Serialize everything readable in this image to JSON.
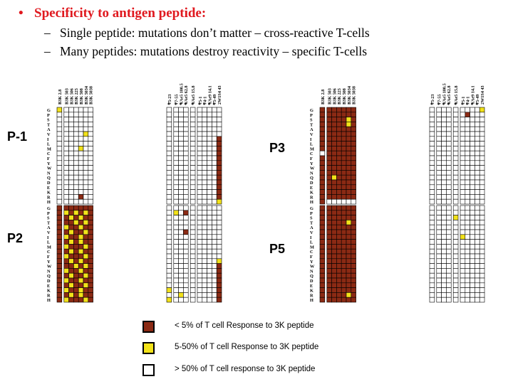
{
  "heading": {
    "bullet": "•",
    "title": "Specificity to antigen peptide:",
    "points": [
      {
        "dash": "–",
        "text": "Single peptide: mutations don’t matter – cross-reactive T-cells"
      },
      {
        "dash": "–",
        "text": "Many peptides: mutations destroy reactivity – specific T-cells"
      }
    ]
  },
  "panels": {
    "p1": "P-1",
    "p2": "P2",
    "p3": "P3",
    "p5": "P5"
  },
  "residues": [
    "G",
    "P",
    "S",
    "T",
    "A",
    "V",
    "I",
    "L",
    "M",
    "C",
    "F",
    "Y",
    "W",
    "N",
    "Q",
    "D",
    "E",
    "K",
    "R",
    "H"
  ],
  "left_columns": [
    "B3K 2.8",
    "B3K 503",
    "B3K 506",
    "B3K 225",
    "B3K 508",
    "B3K 5034",
    "B3K 5038"
  ],
  "right_columns": [
    "75-23",
    "77-55",
    "YAe5 100.5",
    "YAe5 62.8",
    "YAe5 15.8",
    "75-1",
    "74-1",
    "YAe9 14.1",
    "75-49",
    "2W1S4 43"
  ],
  "right_star_mark": "*",
  "legend": [
    {
      "color": "#8b2a14",
      "label": "< 5% of T cell Response to 3K peptide"
    },
    {
      "color": "#f2e219",
      "label": "5-50% of T cell Response to 3K peptide"
    },
    {
      "color": "#ffffff",
      "label": "> 50% of T cell response to 3K peptide"
    }
  ],
  "colors": {
    "red_title": "#e0191f",
    "brown": "#8b2a14",
    "yellow": "#f2e219"
  },
  "chart_data": {
    "type": "heatmap",
    "rows": [
      "G",
      "P",
      "S",
      "T",
      "A",
      "V",
      "I",
      "L",
      "M",
      "C",
      "F",
      "Y",
      "W",
      "N",
      "Q",
      "D",
      "E",
      "K",
      "R",
      "H"
    ],
    "encoding": {
      "0": "> 50% of T cell response",
      "1": "5-50% of T cell response",
      "2": "< 5% of T cell response"
    },
    "panels": [
      {
        "name": "P-1",
        "set": "left",
        "values": [
          "1000000",
          "0000000",
          "0000000",
          "0000000",
          "0000000",
          "0000010",
          "0000000",
          "0000000",
          "0000100",
          "0000000",
          "0000000",
          "0000000",
          "0000000",
          "0000000",
          "0000000",
          "0000000",
          "0000000",
          "0000000",
          "0000200",
          "0000000"
        ]
      },
      {
        "name": "P-1",
        "set": "right",
        "values": [
          "0000000000",
          "0000000000",
          "0000000000",
          "0000000000",
          "0000000000",
          "0000000000",
          "0000000002",
          "0000000002",
          "0000000002",
          "0000000002",
          "0000000002",
          "0000000002",
          "0000000002",
          "0000000002",
          "0000000002",
          "0000000002",
          "0000000002",
          "0000000002",
          "0000000002",
          "0000000001"
        ]
      },
      {
        "name": "P2",
        "set": "left",
        "values": [
          "2222222",
          "2121212",
          "2212122",
          "2221212",
          "2122122",
          "2212212",
          "2122122",
          "2212122",
          "2122212",
          "2212122",
          "2122212",
          "2212122",
          "2221212",
          "2122122",
          "2212212",
          "2122122",
          "2212212",
          "2122122",
          "2212122",
          "2122212"
        ]
      },
      {
        "name": "P2",
        "set": "right",
        "values": [
          "0000000000",
          "0102000000",
          "0000000000",
          "0000000000",
          "0000000000",
          "0002000000",
          "0000000000",
          "0000000000",
          "0000000000",
          "0000000000",
          "0000000000",
          "0000000001",
          "0000000002",
          "0000000002",
          "0000000002",
          "0000000002",
          "0000000002",
          "1000000002",
          "0010000002",
          "1000000002"
        ]
      },
      {
        "name": "P3",
        "set": "left",
        "values": [
          "2222222",
          "2222222",
          "2222212",
          "2222212",
          "2222222",
          "2222222",
          "2222222",
          "2222222",
          "2222222",
          "0222222",
          "2222222",
          "2222222",
          "2222222",
          "2222222",
          "2212222",
          "2222222",
          "2222222",
          "2222222",
          "2222222",
          "2000000"
        ]
      },
      {
        "name": "P3",
        "set": "right",
        "values": [
          "0000000001",
          "0000002000",
          "0000000000",
          "0000000000",
          "0000000000",
          "0000000000",
          "0000000000",
          "0000000000",
          "0000000000",
          "0000000000",
          "0000000000",
          "0000000000",
          "0000000000",
          "0000000000",
          "0000000000",
          "0000000000",
          "0000000000",
          "0000000000",
          "0000000000",
          "0000000000"
        ]
      },
      {
        "name": "P5",
        "set": "left",
        "values": [
          "2222222",
          "2222222",
          "2222222",
          "2222212",
          "2222222",
          "2222222",
          "2222222",
          "2222222",
          "2222222",
          "2222222",
          "2222222",
          "2222222",
          "2222222",
          "2222222",
          "2222222",
          "2222222",
          "2222222",
          "2222222",
          "2222212",
          "2222222"
        ]
      },
      {
        "name": "P5",
        "set": "right",
        "values": [
          "0000000000",
          "0000000000",
          "0000100000",
          "0000000000",
          "0000000000",
          "0000000000",
          "0000010000",
          "0000000000",
          "0000000000",
          "0000000000",
          "0000000000",
          "0000000000",
          "0000000000",
          "0000000000",
          "0000000000",
          "0000000000",
          "0000000000",
          "0000000000",
          "0000000000",
          "0000000000"
        ]
      }
    ]
  }
}
